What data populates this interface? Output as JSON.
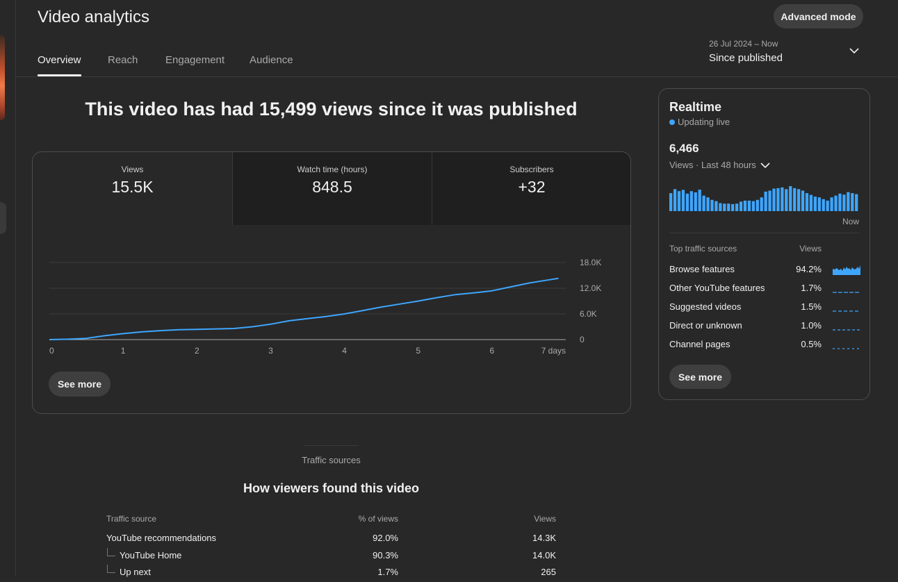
{
  "page": {
    "title": "Video analytics",
    "advanced_mode_label": "Advanced mode"
  },
  "tabs": [
    {
      "label": "Overview",
      "active": true
    },
    {
      "label": "Reach",
      "active": false
    },
    {
      "label": "Engagement",
      "active": false
    },
    {
      "label": "Audience",
      "active": false
    }
  ],
  "date_range": {
    "dates": "26 Jul 2024 – Now",
    "period": "Since published"
  },
  "headline": "This video has had 15,499 views since it was published",
  "metrics": [
    {
      "label": "Views",
      "value": "15.5K"
    },
    {
      "label": "Watch time (hours)",
      "value": "848.5"
    },
    {
      "label": "Subscribers",
      "value": "+32"
    }
  ],
  "overview_chart": {
    "see_more_label": "See more",
    "line_color": "#3ea6ff"
  },
  "chart_data": {
    "type": "line",
    "title": "",
    "xlabel": "",
    "ylabel": "",
    "x_ticks": [
      "0",
      "1",
      "2",
      "3",
      "4",
      "5",
      "6",
      "7 days"
    ],
    "y_ticks": [
      "0",
      "6.0K",
      "12.0K",
      "18.0K"
    ],
    "xlim": [
      0,
      7
    ],
    "ylim": [
      0,
      18000
    ],
    "grid": true,
    "series": [
      {
        "x": [
          0,
          0.25,
          0.5,
          0.75,
          1,
          1.25,
          1.5,
          1.75,
          2,
          2.25,
          2.5,
          2.75,
          3,
          3.25,
          3.5,
          3.75,
          4,
          4.25,
          4.5,
          4.75,
          5,
          5.25,
          5.5,
          5.75,
          6,
          6.25,
          6.5,
          6.75,
          6.9
        ],
        "y": [
          0,
          100,
          300,
          900,
          1400,
          1800,
          2100,
          2300,
          2400,
          2500,
          2600,
          3000,
          3600,
          4400,
          4900,
          5400,
          6000,
          6800,
          7600,
          8300,
          9000,
          9800,
          10500,
          10900,
          11400,
          12300,
          13200,
          13900,
          14300
        ]
      }
    ]
  },
  "realtime": {
    "title": "Realtime",
    "status": "Updating live",
    "count": "6,466",
    "period_label": "Views · Last 48 hours",
    "now_label": "Now",
    "bar_color": "#3ea6ff",
    "bars": [
      0.72,
      0.88,
      0.8,
      0.85,
      0.7,
      0.8,
      0.75,
      0.86,
      0.62,
      0.55,
      0.45,
      0.4,
      0.32,
      0.3,
      0.3,
      0.28,
      0.3,
      0.38,
      0.42,
      0.42,
      0.4,
      0.45,
      0.55,
      0.78,
      0.82,
      0.9,
      0.92,
      0.95,
      0.88,
      1.0,
      0.92,
      0.88,
      0.82,
      0.72,
      0.65,
      0.58,
      0.55,
      0.48,
      0.42,
      0.55,
      0.62,
      0.7,
      0.66,
      0.76,
      0.72,
      0.68
    ],
    "sources_header": "Top traffic sources",
    "views_header": "Views",
    "sources": [
      {
        "name": "Browse features",
        "pct": "94.2%",
        "spark": "area"
      },
      {
        "name": "Other YouTube features",
        "pct": "1.7%",
        "spark": "flat"
      },
      {
        "name": "Suggested videos",
        "pct": "1.5%",
        "spark": "flat"
      },
      {
        "name": "Direct or unknown",
        "pct": "1.0%",
        "spark": "flat"
      },
      {
        "name": "Channel pages",
        "pct": "0.5%",
        "spark": "flat"
      }
    ],
    "see_more_label": "See more"
  },
  "traffic": {
    "section_label": "Traffic sources",
    "title": "How viewers found this video",
    "headers": {
      "source": "Traffic source",
      "pct": "% of views",
      "views": "Views"
    },
    "rows": [
      {
        "source": "YouTube recommendations",
        "pct": "92.0%",
        "views": "14.3K",
        "child": false
      },
      {
        "source": "YouTube Home",
        "pct": "90.3%",
        "views": "14.0K",
        "child": true
      },
      {
        "source": "Up next",
        "pct": "1.7%",
        "views": "265",
        "child": true
      }
    ]
  }
}
